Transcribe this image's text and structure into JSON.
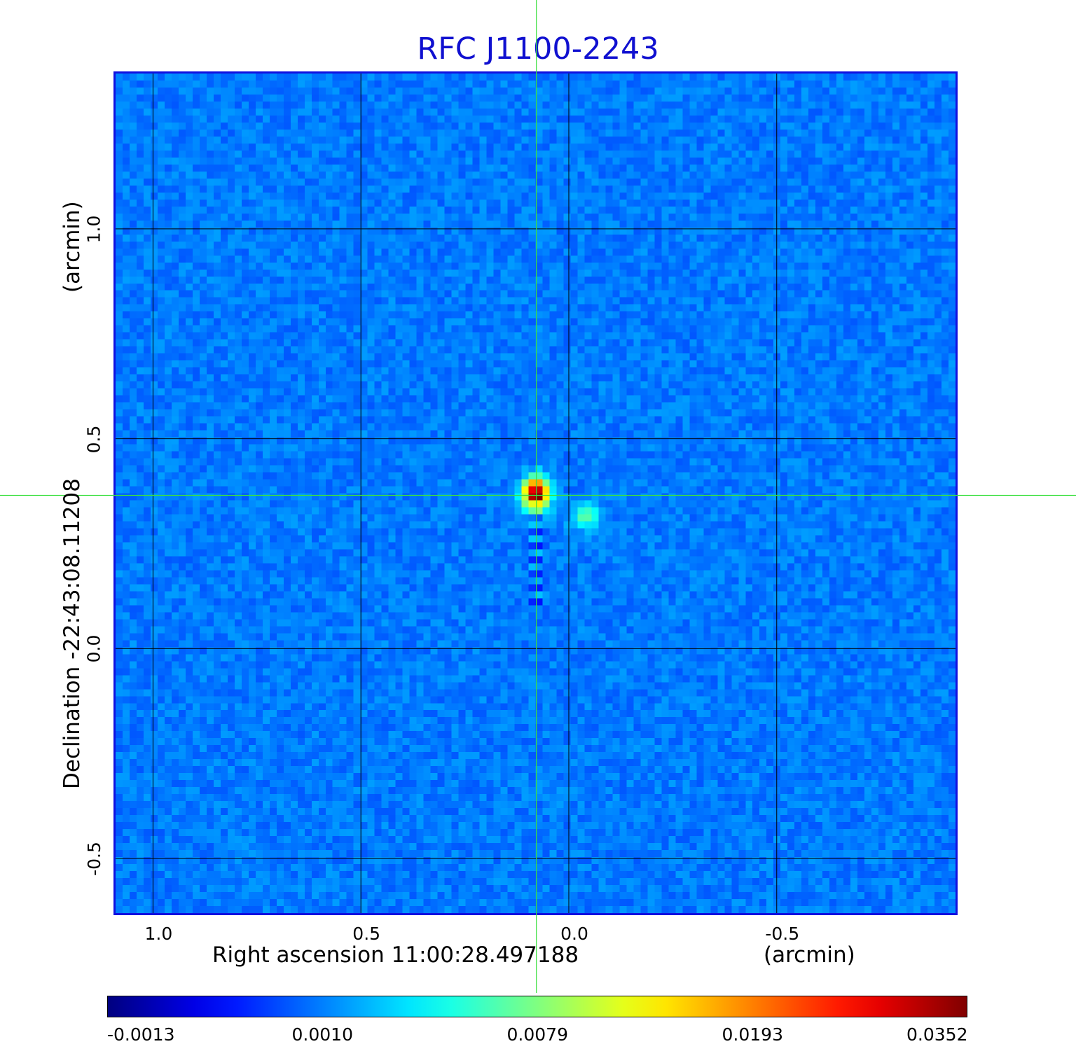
{
  "chart_data": {
    "type": "heatmap",
    "title": "RFC J1100-2243",
    "xlabel": "Right ascension  11:00:28.497188",
    "xlabel_unit": "(arcmin)",
    "ylabel": "Declination  -22:43:08.11208",
    "ylabel_unit": "(arcmin)",
    "x_ticks": [
      "1.0",
      "0.5",
      "0.0",
      "-0.5"
    ],
    "x_tick_values": [
      1.0,
      0.5,
      0.0,
      -0.5
    ],
    "y_ticks": [
      "1.0",
      "0.5",
      "0.0",
      "-0.5"
    ],
    "y_tick_values": [
      1.0,
      0.5,
      0.0,
      -0.5
    ],
    "xlim": [
      1.09,
      -0.93
    ],
    "ylim": [
      -0.63,
      1.37
    ],
    "grid": true,
    "colormap": "jet",
    "colorbar_ticks": [
      "-0.0013",
      "0.0010",
      "0.0079",
      "0.0193",
      "0.0352"
    ],
    "sources": [
      {
        "x": 0.078,
        "y": 0.37,
        "peak": 0.0352
      },
      {
        "x": -0.04,
        "y": 0.315,
        "peak": 0.006
      }
    ],
    "crosshair": {
      "x": 0.078,
      "y": 0.365
    }
  }
}
